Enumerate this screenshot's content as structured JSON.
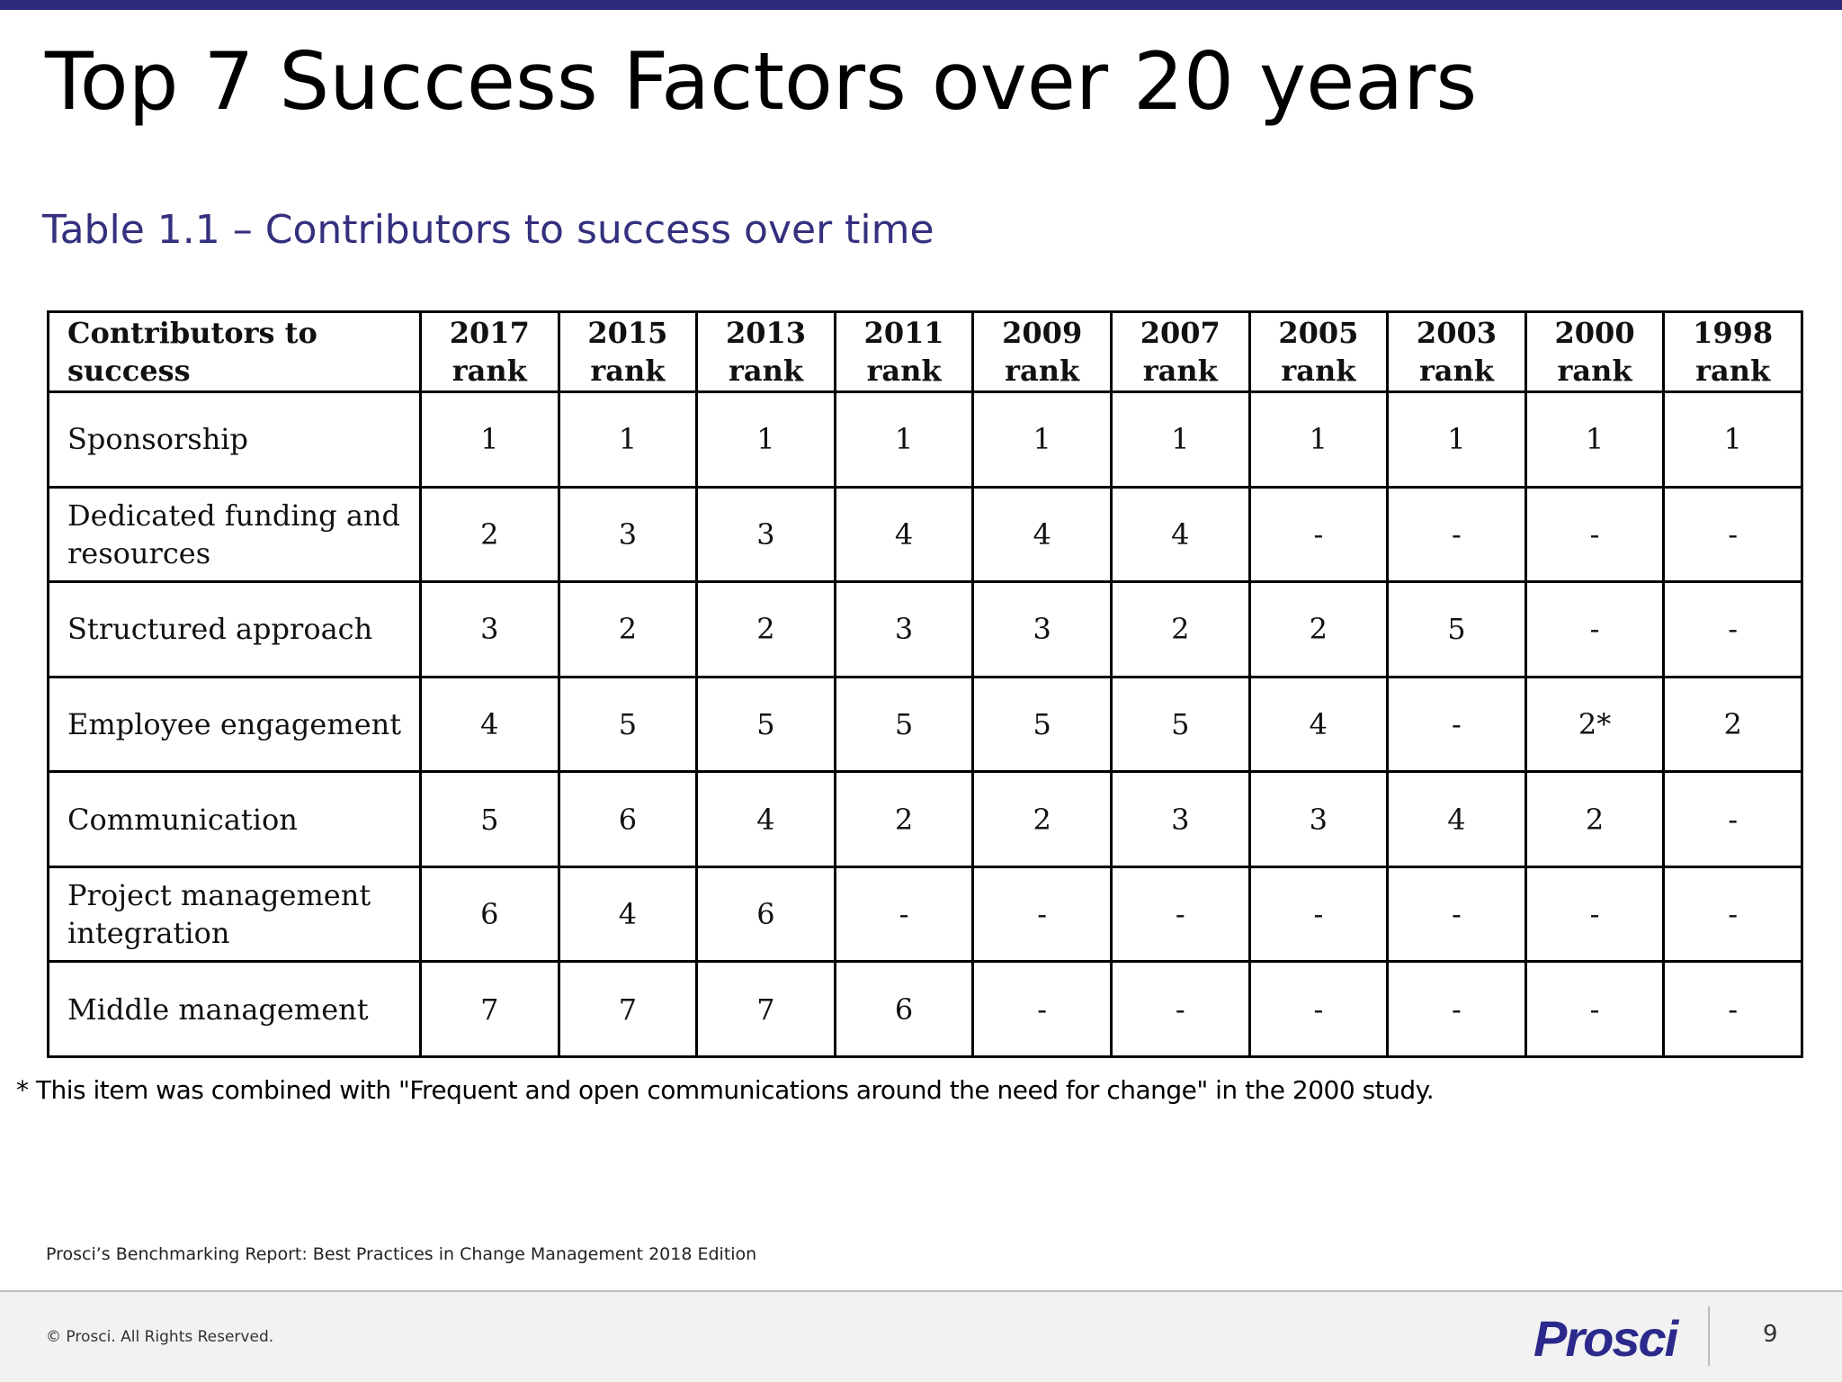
{
  "colors": {
    "accent_bar": "#2e2a7a",
    "caption": "#34307e",
    "logo": "#2b2a8c"
  },
  "slide": {
    "title": "Top 7 Success Factors over 20 years"
  },
  "table": {
    "caption": "Table 1.1 – Contributors to success over time",
    "header_first": "Contributors to success",
    "columns": [
      "2017 rank",
      "2015 rank",
      "2013 rank",
      "2011 rank",
      "2009 rank",
      "2007 rank",
      "2005 rank",
      "2003 rank",
      "2000 rank",
      "1998 rank"
    ],
    "rows": [
      {
        "factor": "Sponsorship",
        "ranks": [
          "1",
          "1",
          "1",
          "1",
          "1",
          "1",
          "1",
          "1",
          "1",
          "1"
        ]
      },
      {
        "factor": "Dedicated funding and resources",
        "ranks": [
          "2",
          "3",
          "3",
          "4",
          "4",
          "4",
          "-",
          "-",
          "-",
          "-"
        ]
      },
      {
        "factor": "Structured approach",
        "ranks": [
          "3",
          "2",
          "2",
          "3",
          "3",
          "2",
          "2",
          "5",
          "-",
          "-"
        ]
      },
      {
        "factor": "Employee engagement",
        "ranks": [
          "4",
          "5",
          "5",
          "5",
          "5",
          "5",
          "4",
          "-",
          "2*",
          "2"
        ]
      },
      {
        "factor": "Communication",
        "ranks": [
          "5",
          "6",
          "4",
          "2",
          "2",
          "3",
          "3",
          "4",
          "2",
          "-"
        ]
      },
      {
        "factor": "Project management integration",
        "ranks": [
          "6",
          "4",
          "6",
          "-",
          "-",
          "-",
          "-",
          "-",
          "-",
          "-"
        ]
      },
      {
        "factor": "Middle management",
        "ranks": [
          "7",
          "7",
          "7",
          "6",
          "-",
          "-",
          "-",
          "-",
          "-",
          "-"
        ]
      }
    ]
  },
  "footnote": "* This item was combined with \"Frequent and open communications around the need for change\" in the 2000 study.",
  "source": "Prosci’s Benchmarking Report: Best Practices in Change Management 2018 Edition",
  "footer": {
    "copyright": "© Prosci. All Rights Reserved.",
    "logo_text": "Prosci",
    "page_number": "9"
  }
}
